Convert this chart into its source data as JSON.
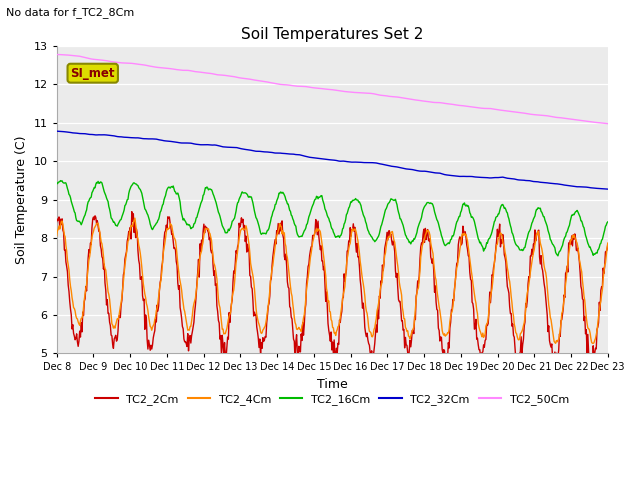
{
  "title": "Soil Temperatures Set 2",
  "subtitle": "No data for f_TC2_8Cm",
  "xlabel": "Time",
  "ylabel": "Soil Temperature (C)",
  "ylim": [
    5.0,
    13.0
  ],
  "yticks": [
    5.0,
    6.0,
    7.0,
    8.0,
    9.0,
    10.0,
    11.0,
    12.0,
    13.0
  ],
  "background_color": "#e8e8e8",
  "plot_bg": "#ebebeb",
  "series": {
    "TC2_2Cm": {
      "color": "#cc0000",
      "lw": 1.0
    },
    "TC2_4Cm": {
      "color": "#ff8800",
      "lw": 1.0
    },
    "TC2_16Cm": {
      "color": "#00bb00",
      "lw": 1.0
    },
    "TC2_32Cm": {
      "color": "#0000cc",
      "lw": 1.0
    },
    "TC2_50Cm": {
      "color": "#ff88ff",
      "lw": 1.0
    }
  },
  "legend_label": "SI_met",
  "legend_box_facecolor": "#dddd00",
  "legend_box_edgecolor": "#888800",
  "xtick_labels": [
    "Dec 8",
    "Dec 9",
    "Dec 10",
    "Dec 11",
    "Dec 12",
    "Dec 13",
    "Dec 14",
    "Dec 15",
    "Dec 16",
    "Dec 17",
    "Dec 18",
    "Dec 19",
    "Dec 20",
    "Dec 21",
    "Dec 22",
    "Dec 23"
  ]
}
